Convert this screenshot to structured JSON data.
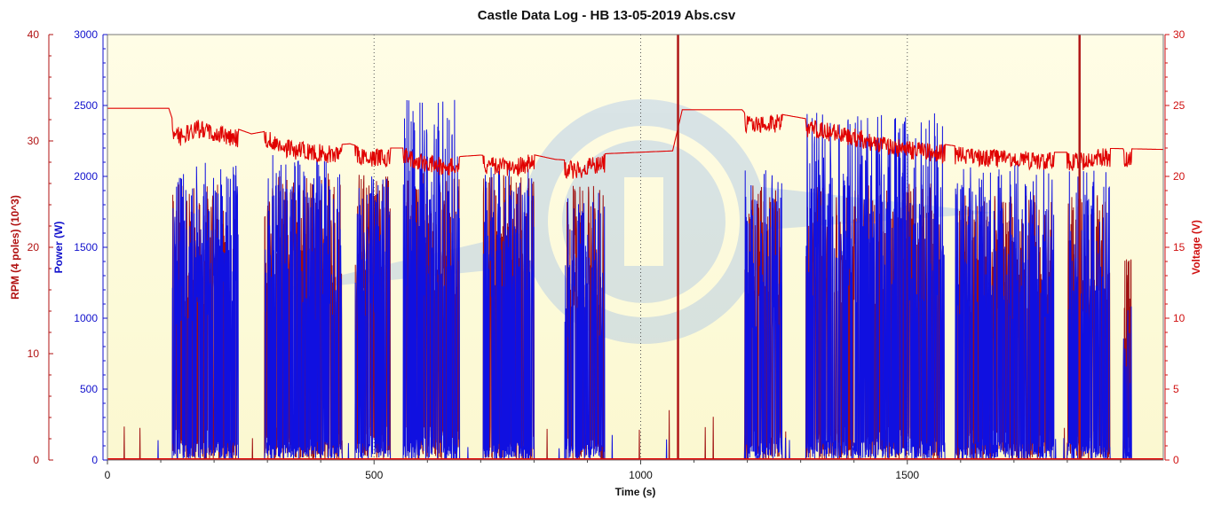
{
  "title": "Castle Data Log - HB 13-05-2019 Abs.csv",
  "chart_data": {
    "type": "line",
    "title": "Castle Data Log - HB 13-05-2019 Abs.csv",
    "xlabel": "Time (s)",
    "xlim": [
      0,
      1980
    ],
    "x_ticks": [
      "0",
      "500",
      "1000",
      "1500"
    ],
    "x_tick_values": [
      0,
      500,
      1000,
      1500
    ],
    "grid": "vertical dotted at 500 s intervals",
    "legend": "none",
    "axes": {
      "rpm": {
        "label": "RPM (4 poles) (10^3)",
        "side": "left-outer",
        "color": "#b01010",
        "range": [
          0,
          40
        ],
        "ticks": [
          "0",
          "10",
          "20",
          "30",
          "40"
        ],
        "tick_values": [
          0,
          10,
          20,
          30,
          40
        ]
      },
      "power": {
        "label": "Power (W)",
        "side": "left-inner",
        "color": "#1010cc",
        "range": [
          0,
          3000
        ],
        "ticks": [
          "0",
          "500",
          "1000",
          "1500",
          "2000",
          "2500",
          "3000"
        ],
        "tick_values": [
          0,
          500,
          1000,
          1500,
          2000,
          2500,
          3000
        ]
      },
      "voltage": {
        "label": "Voltage (V)",
        "side": "right",
        "color": "#d01010",
        "range": [
          0,
          30
        ],
        "ticks": [
          "0",
          "5",
          "10",
          "15",
          "20",
          "25",
          "30"
        ],
        "tick_values": [
          0,
          5,
          10,
          15,
          20,
          25,
          30
        ]
      }
    },
    "series": [
      {
        "name": "Voltage (V)",
        "axis": "voltage",
        "color": "#e00000",
        "points": [
          [
            0,
            24.8
          ],
          [
            115,
            24.8
          ],
          [
            122,
            24.0
          ],
          [
            135,
            23.4
          ],
          [
            170,
            24.0
          ],
          [
            200,
            23.6
          ],
          [
            240,
            23.4
          ],
          [
            270,
            23.0
          ],
          [
            300,
            23.2
          ],
          [
            345,
            22.5
          ],
          [
            400,
            22.3
          ],
          [
            420,
            22.2
          ],
          [
            455,
            22.3
          ],
          [
            480,
            22.0
          ],
          [
            560,
            22.0
          ],
          [
            600,
            21.5
          ],
          [
            640,
            21.3
          ],
          [
            660,
            21.4
          ],
          [
            700,
            21.5
          ],
          [
            760,
            21.2
          ],
          [
            790,
            21.6
          ],
          [
            840,
            21.2
          ],
          [
            880,
            21.1
          ],
          [
            935,
            21.6
          ],
          [
            1060,
            21.8
          ],
          [
            1078,
            24.7
          ],
          [
            1190,
            24.7
          ],
          [
            1200,
            24.3
          ],
          [
            1260,
            24.4
          ],
          [
            1320,
            24.0
          ],
          [
            1380,
            23.6
          ],
          [
            1440,
            23.0
          ],
          [
            1500,
            22.5
          ],
          [
            1560,
            22.3
          ],
          [
            1620,
            22.0
          ],
          [
            1700,
            21.9
          ],
          [
            1760,
            21.7
          ],
          [
            1830,
            21.7
          ],
          [
            1840,
            22.0
          ],
          [
            1980,
            21.9
          ]
        ],
        "spikes": [
          [
            1070,
            30
          ],
          [
            1823,
            30
          ]
        ]
      },
      {
        "name": "RPM (4 poles) (10^3)",
        "axis": "rpm",
        "color": "#a01010",
        "bursts": [
          [
            122,
            240,
            26
          ],
          [
            295,
            440,
            27
          ],
          [
            465,
            530,
            27
          ],
          [
            560,
            660,
            27
          ],
          [
            705,
            800,
            27
          ],
          [
            862,
            930,
            26
          ],
          [
            1195,
            1265,
            26
          ],
          [
            1310,
            1560,
            26
          ],
          [
            1590,
            1770,
            25
          ],
          [
            1800,
            1880,
            25
          ],
          [
            1905,
            1920,
            19
          ]
        ],
        "spikes": [
          [
            1070,
            40
          ],
          [
            1823,
            40
          ]
        ]
      },
      {
        "name": "Power (W)",
        "axis": "power",
        "color": "#1010e0",
        "bursts": [
          [
            122,
            245,
            2100
          ],
          [
            295,
            440,
            2150
          ],
          [
            465,
            530,
            2000
          ],
          [
            555,
            660,
            2550
          ],
          [
            705,
            800,
            2100
          ],
          [
            858,
            932,
            1900
          ],
          [
            1195,
            1265,
            2050
          ],
          [
            1310,
            1570,
            2450
          ],
          [
            1590,
            1775,
            2100
          ],
          [
            1800,
            1880,
            2050
          ],
          [
            1905,
            1920,
            1150
          ]
        ]
      }
    ]
  }
}
